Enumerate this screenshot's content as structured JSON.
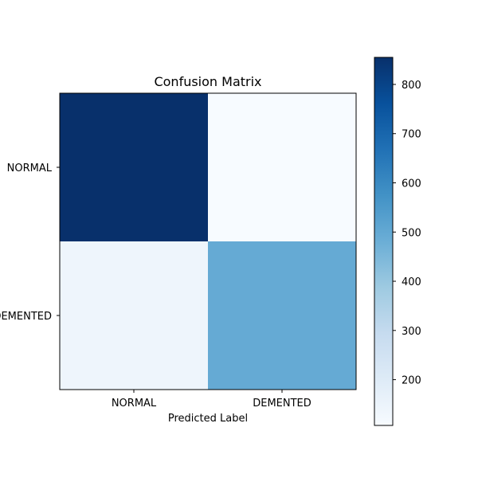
{
  "chart_data": {
    "type": "heatmap",
    "title": "Confusion Matrix",
    "xlabel": "Predicted Label",
    "ylabel": "",
    "x_categories": [
      "NORMAL",
      "DEMENTED"
    ],
    "y_categories": [
      "NORMAL",
      "DEMENTED"
    ],
    "values": [
      [
        855,
        107
      ],
      [
        140,
        495
      ]
    ],
    "colormap": "Blues",
    "colorbar": {
      "min": 107,
      "max": 855,
      "ticks": [
        200,
        300,
        400,
        500,
        600,
        700,
        800
      ]
    },
    "grid": false
  }
}
